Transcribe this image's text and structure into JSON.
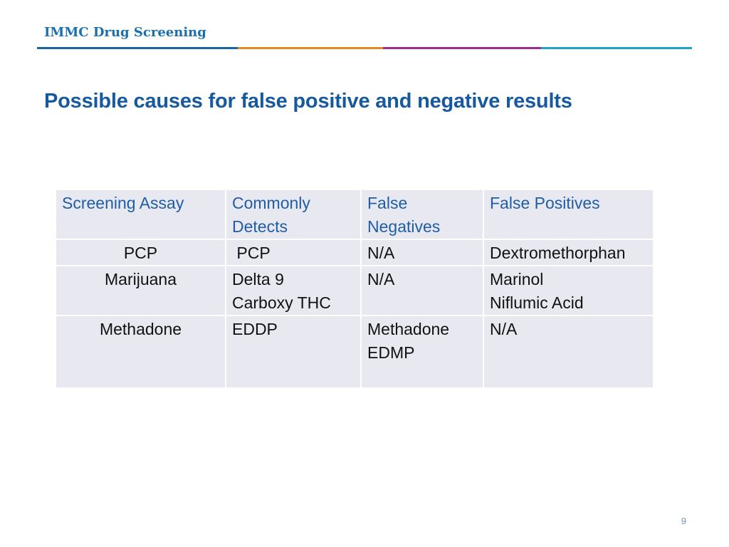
{
  "header": {
    "title": "IMMC Drug Screening",
    "rule_colors": [
      "#1b64a3",
      "#e58a1f",
      "#9c2e8c",
      "#1ea4c9"
    ]
  },
  "slide": {
    "title": "Possible causes for false positive and negative results",
    "page_number": "9"
  },
  "table": {
    "headers": [
      "Screening Assay",
      "Commonly Detects",
      "False Negatives",
      "False Positives"
    ],
    "rows": [
      {
        "assay": "PCP",
        "detects": [
          " PCP"
        ],
        "false_negatives": [
          "N/A"
        ],
        "false_positives": [
          "Dextromethorphan"
        ]
      },
      {
        "assay": "Marijuana",
        "detects": [
          "Delta 9",
          "Carboxy THC"
        ],
        "false_negatives": [
          "N/A"
        ],
        "false_positives": [
          "Marinol",
          "Niflumic Acid"
        ]
      },
      {
        "assay": "Methadone",
        "detects": [
          "EDDP"
        ],
        "false_negatives": [
          "Methadone",
          "EDMP"
        ],
        "false_positives": [
          "N/A"
        ]
      }
    ]
  },
  "colors": {
    "header_text": "#1a6faf",
    "title_text": "#17599e",
    "table_header_text": "#1f5da8",
    "table_cell_bg": "#e8e9f0"
  }
}
